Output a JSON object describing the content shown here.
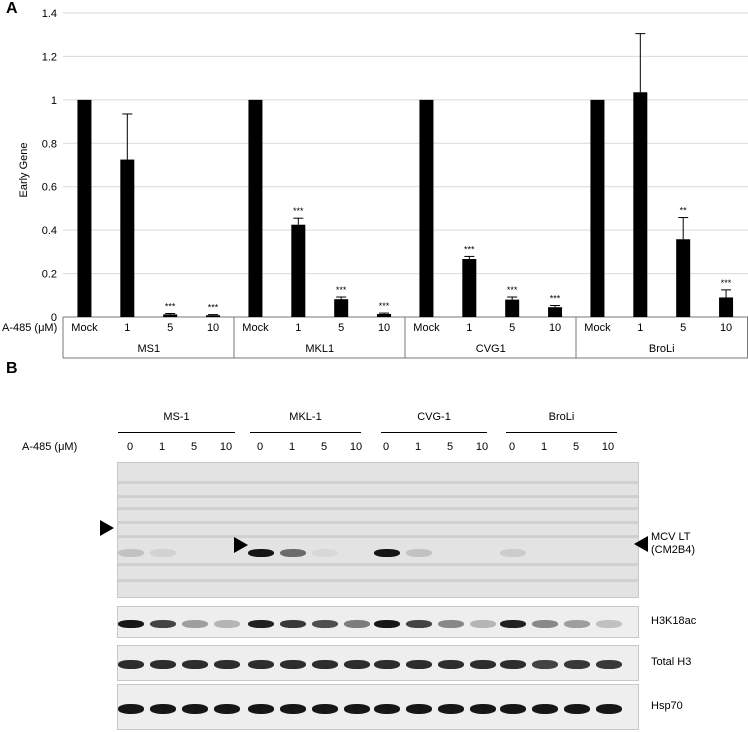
{
  "panels": {
    "a": "A",
    "b": "B"
  },
  "chart_data": {
    "type": "bar",
    "ylabel": "Early Gene",
    "ylim": [
      0,
      1.4
    ],
    "yticks": [
      "0",
      "0.2",
      "0.4",
      "0.6",
      "0.8",
      "1",
      "1.2",
      "1.4"
    ],
    "xaxis_title": "A-485 (μM)",
    "grid": true,
    "bar_color": "#000000",
    "groups": [
      {
        "name": "MS1",
        "categories": [
          "Mock",
          "1",
          "5",
          "10"
        ],
        "values": [
          1.0,
          0.725,
          0.012,
          0.008
        ],
        "errors": [
          0,
          0.21,
          0.004,
          0.003
        ],
        "sig": [
          "",
          "",
          "***",
          "***"
        ]
      },
      {
        "name": "MKL1",
        "categories": [
          "Mock",
          "1",
          "5",
          "10"
        ],
        "values": [
          1.0,
          0.425,
          0.082,
          0.014
        ],
        "errors": [
          0,
          0.03,
          0.01,
          0.004
        ],
        "sig": [
          "",
          "***",
          "***",
          "***"
        ]
      },
      {
        "name": "CVG1",
        "categories": [
          "Mock",
          "1",
          "5",
          "10"
        ],
        "values": [
          1.0,
          0.267,
          0.08,
          0.045
        ],
        "errors": [
          0,
          0.012,
          0.012,
          0.008
        ],
        "sig": [
          "",
          "***",
          "***",
          "***"
        ]
      },
      {
        "name": "BroLi",
        "categories": [
          "Mock",
          "1",
          "5",
          "10"
        ],
        "values": [
          1.0,
          1.035,
          0.358,
          0.09
        ],
        "errors": [
          0,
          0.27,
          0.1,
          0.035
        ],
        "sig": [
          "",
          "",
          "**",
          "***"
        ]
      }
    ]
  },
  "blot": {
    "conc_label": "A-485 (μM)",
    "groups": [
      "MS-1",
      "MKL-1",
      "CVG-1",
      "BroLi"
    ],
    "lanes": [
      "0",
      "1",
      "5",
      "10",
      "0",
      "1",
      "5",
      "10",
      "0",
      "1",
      "5",
      "10",
      "0",
      "1",
      "5",
      "10"
    ],
    "band_labels": {
      "lt_line1": "MCV LT",
      "lt_line2": "(CM2B4)",
      "h3k18ac": "H3K18ac",
      "total_h3": "Total H3",
      "hsp70": "Hsp70"
    },
    "intensity": {
      "lt": [
        0.15,
        0.08,
        0.0,
        0.0,
        0.95,
        0.55,
        0.05,
        0.0,
        0.95,
        0.15,
        0.0,
        0.0,
        0.1,
        0.0,
        0.0,
        0.0
      ],
      "h3k18ac": [
        0.95,
        0.75,
        0.35,
        0.25,
        0.9,
        0.8,
        0.7,
        0.5,
        0.95,
        0.75,
        0.45,
        0.25,
        0.9,
        0.45,
        0.35,
        0.2
      ],
      "total_h3": [
        0.85,
        0.85,
        0.85,
        0.85,
        0.85,
        0.85,
        0.85,
        0.85,
        0.85,
        0.85,
        0.85,
        0.85,
        0.85,
        0.75,
        0.8,
        0.8
      ],
      "hsp70": [
        0.95,
        0.95,
        0.95,
        0.95,
        0.95,
        0.95,
        0.95,
        0.95,
        0.95,
        0.95,
        0.95,
        0.95,
        0.95,
        0.95,
        0.95,
        0.95
      ]
    }
  }
}
